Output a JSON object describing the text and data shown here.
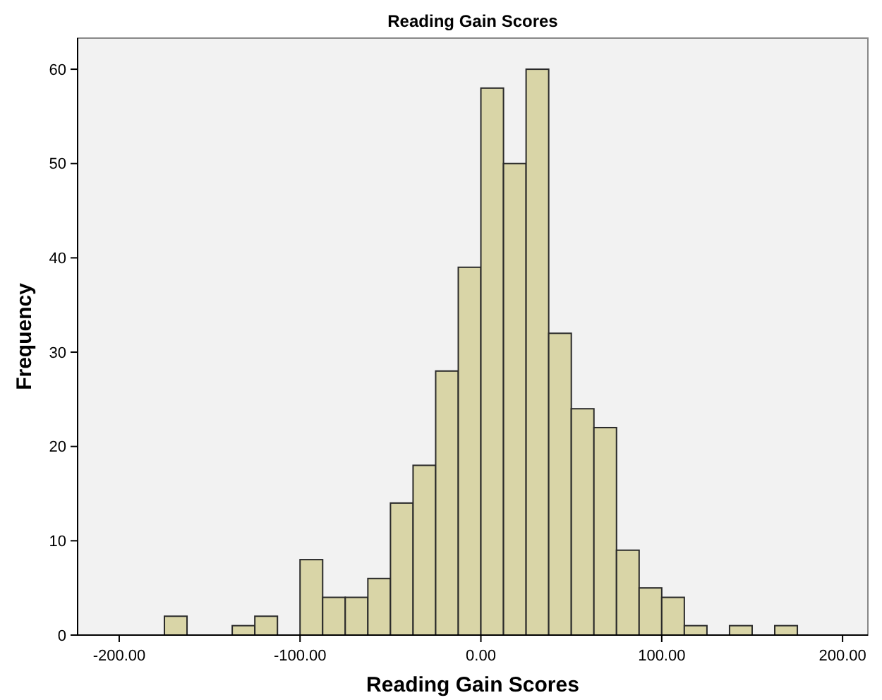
{
  "chart_data": {
    "type": "histogram",
    "title": "Reading Gain Scores",
    "xlabel": "Reading Gain Scores",
    "ylabel": "Frequency",
    "bins": [
      -175,
      -162.5,
      -150,
      -137.5,
      -125,
      -112.5,
      -100,
      -87.5,
      -75,
      -62.5,
      -50,
      -37.5,
      -25,
      -12.5,
      0,
      12.5,
      25,
      37.5,
      50,
      62.5,
      75,
      87.5,
      100,
      112.5,
      125,
      137.5,
      150,
      162.5,
      175
    ],
    "values": [
      2,
      0,
      0,
      1,
      2,
      0,
      8,
      4,
      4,
      6,
      14,
      18,
      28,
      39,
      58,
      50,
      60,
      32,
      24,
      22,
      9,
      5,
      4,
      1,
      0,
      1,
      0,
      1
    ],
    "color": "#d9d5a7",
    "xlim": [
      -223,
      214
    ],
    "xticks": [
      {
        "value": -200,
        "label": "-200.00"
      },
      {
        "value": -100,
        "label": "-100.00"
      },
      {
        "value": 0,
        "label": "0.00"
      },
      {
        "value": 100,
        "label": "100.00"
      },
      {
        "value": 200,
        "label": "200.00"
      }
    ],
    "ylim": [
      0,
      63.3
    ],
    "yticks": [
      0,
      10,
      20,
      30,
      40,
      50,
      60
    ],
    "grid": false
  }
}
